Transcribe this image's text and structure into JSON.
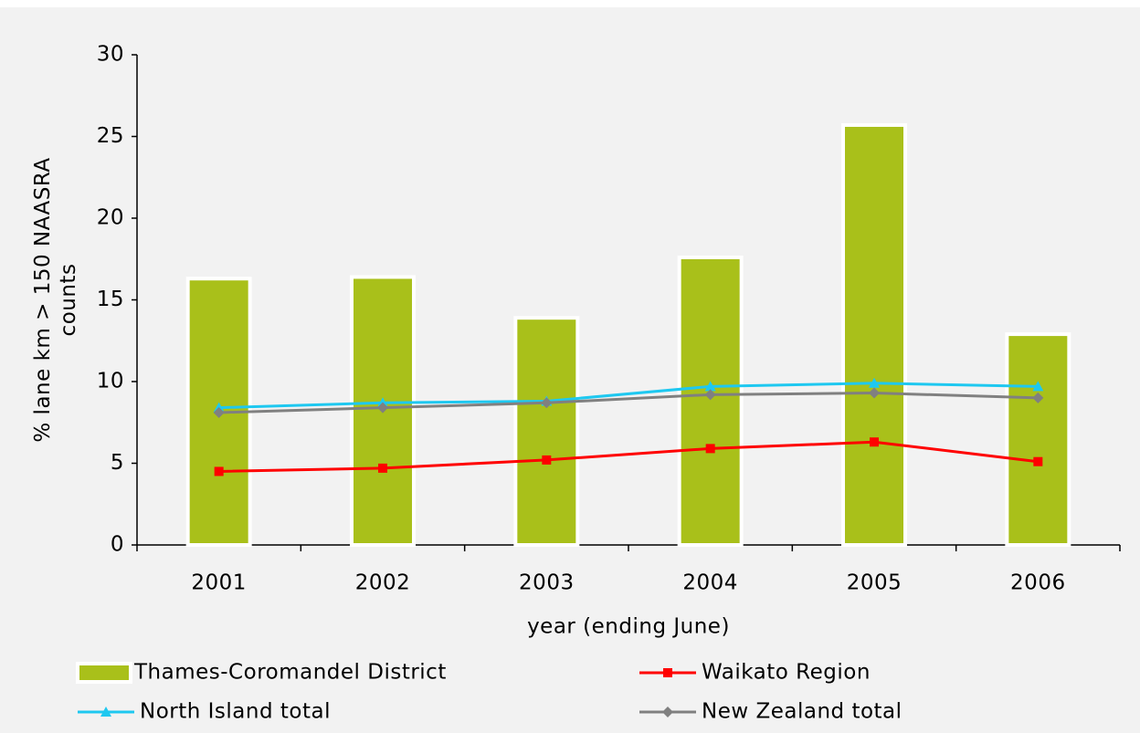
{
  "chart_data": {
    "type": "bar",
    "categories": [
      "2001",
      "2002",
      "2003",
      "2004",
      "2005",
      "2006"
    ],
    "xlabel": "year (ending June)",
    "ylabel": [
      "% lane km > 150 NAASRA",
      "counts"
    ],
    "ylim": [
      0,
      30
    ],
    "yticks": [
      0,
      5,
      10,
      15,
      20,
      25,
      30
    ],
    "series": [
      {
        "name": "Thames-Coromandel District",
        "type": "bar",
        "color": "#a9c01a",
        "values": [
          16.3,
          16.4,
          13.9,
          17.6,
          25.7,
          12.9
        ]
      },
      {
        "name": "Waikato Region",
        "type": "line",
        "marker": "square",
        "color": "#ff0000",
        "values": [
          4.5,
          4.7,
          5.2,
          5.9,
          6.3,
          5.1
        ]
      },
      {
        "name": "North Island total",
        "type": "line",
        "marker": "triangle",
        "color": "#1ec8f0",
        "values": [
          8.4,
          8.7,
          8.8,
          9.7,
          9.9,
          9.7
        ]
      },
      {
        "name": "New Zealand total",
        "type": "line",
        "marker": "diamond",
        "color": "#808080",
        "values": [
          8.1,
          8.4,
          8.7,
          9.2,
          9.3,
          9.0
        ]
      }
    ]
  }
}
